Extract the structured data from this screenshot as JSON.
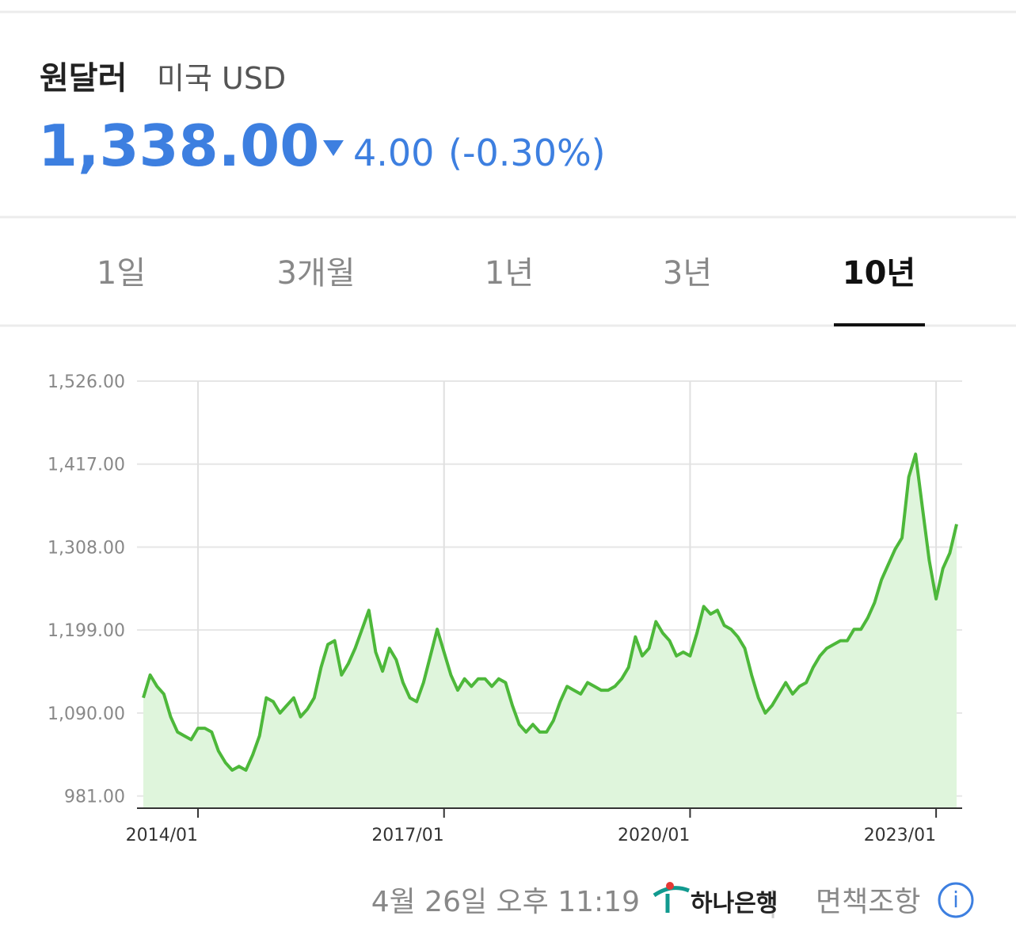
{
  "header": {
    "title": "원달러",
    "subtitle": "미국 USD",
    "price": "1,338.00",
    "change": "4.00",
    "change_percent": "(-0.30%)"
  },
  "tabs": {
    "items": [
      "1일",
      "3개월",
      "1년",
      "3년",
      "10년"
    ],
    "selected": 4
  },
  "chart_data": {
    "type": "line",
    "color": "#4db83a",
    "area_color": "#dff5dc",
    "x": [
      "2013/05",
      "2013/06",
      "2013/07",
      "2013/08",
      "2013/09",
      "2013/10",
      "2013/11",
      "2013/12",
      "2014/01",
      "2014/02",
      "2014/03",
      "2014/04",
      "2014/05",
      "2014/06",
      "2014/07",
      "2014/08",
      "2014/09",
      "2014/10",
      "2014/11",
      "2014/12",
      "2015/01",
      "2015/02",
      "2015/03",
      "2015/04",
      "2015/05",
      "2015/06",
      "2015/07",
      "2015/08",
      "2015/09",
      "2015/10",
      "2015/11",
      "2015/12",
      "2016/01",
      "2016/02",
      "2016/03",
      "2016/04",
      "2016/05",
      "2016/06",
      "2016/07",
      "2016/08",
      "2016/09",
      "2016/10",
      "2016/11",
      "2016/12",
      "2017/01",
      "2017/02",
      "2017/03",
      "2017/04",
      "2017/05",
      "2017/06",
      "2017/07",
      "2017/08",
      "2017/09",
      "2017/10",
      "2017/11",
      "2017/12",
      "2018/01",
      "2018/02",
      "2018/03",
      "2018/04",
      "2018/05",
      "2018/06",
      "2018/07",
      "2018/08",
      "2018/09",
      "2018/10",
      "2018/11",
      "2018/12",
      "2019/01",
      "2019/02",
      "2019/03",
      "2019/04",
      "2019/05",
      "2019/06",
      "2019/07",
      "2019/08",
      "2019/09",
      "2019/10",
      "2019/11",
      "2019/12",
      "2020/01",
      "2020/02",
      "2020/03",
      "2020/04",
      "2020/05",
      "2020/06",
      "2020/07",
      "2020/08",
      "2020/09",
      "2020/10",
      "2020/11",
      "2020/12",
      "2021/01",
      "2021/02",
      "2021/03",
      "2021/04",
      "2021/05",
      "2021/06",
      "2021/07",
      "2021/08",
      "2021/09",
      "2021/10",
      "2021/11",
      "2021/12",
      "2022/01",
      "2022/02",
      "2022/03",
      "2022/04",
      "2022/05",
      "2022/06",
      "2022/07",
      "2022/08",
      "2022/09",
      "2022/10",
      "2022/11",
      "2022/12",
      "2023/01",
      "2023/02",
      "2023/03",
      "2023/04"
    ],
    "values": [
      1110,
      1140,
      1125,
      1115,
      1085,
      1065,
      1060,
      1055,
      1070,
      1070,
      1065,
      1040,
      1025,
      1015,
      1020,
      1015,
      1035,
      1060,
      1110,
      1105,
      1090,
      1100,
      1110,
      1085,
      1095,
      1110,
      1150,
      1180,
      1185,
      1140,
      1155,
      1175,
      1200,
      1225,
      1170,
      1145,
      1175,
      1160,
      1130,
      1110,
      1105,
      1130,
      1165,
      1200,
      1170,
      1140,
      1120,
      1135,
      1125,
      1135,
      1135,
      1125,
      1135,
      1130,
      1100,
      1075,
      1065,
      1075,
      1065,
      1065,
      1080,
      1105,
      1125,
      1120,
      1115,
      1130,
      1125,
      1120,
      1120,
      1125,
      1135,
      1150,
      1190,
      1165,
      1175,
      1210,
      1195,
      1185,
      1165,
      1170,
      1165,
      1195,
      1230,
      1220,
      1225,
      1205,
      1200,
      1190,
      1175,
      1140,
      1110,
      1090,
      1100,
      1115,
      1130,
      1115,
      1125,
      1130,
      1150,
      1165,
      1175,
      1180,
      1185,
      1185,
      1200,
      1200,
      1215,
      1235,
      1265,
      1285,
      1305,
      1320,
      1400,
      1430,
      1360,
      1290,
      1240,
      1280,
      1300,
      1338
    ],
    "xlim": [
      "2013/05",
      "2023/04"
    ],
    "xticks": [
      "2014/01",
      "2017/01",
      "2020/01",
      "2023/01"
    ],
    "ylim": [
      965,
      1526
    ],
    "yticks": [
      {
        "value": 981,
        "label": "981.00"
      },
      {
        "value": 1090,
        "label": "1,090.00"
      },
      {
        "value": 1199,
        "label": "1,199.00"
      },
      {
        "value": 1308,
        "label": "1,308.00"
      },
      {
        "value": 1417,
        "label": "1,417.00"
      },
      {
        "value": 1526,
        "label": "1,526.00"
      }
    ],
    "grid": true
  },
  "footer": {
    "timestamp": "4월 26일 오후 11:19",
    "bank": "하나은행",
    "disclaimer": "면책조항"
  }
}
